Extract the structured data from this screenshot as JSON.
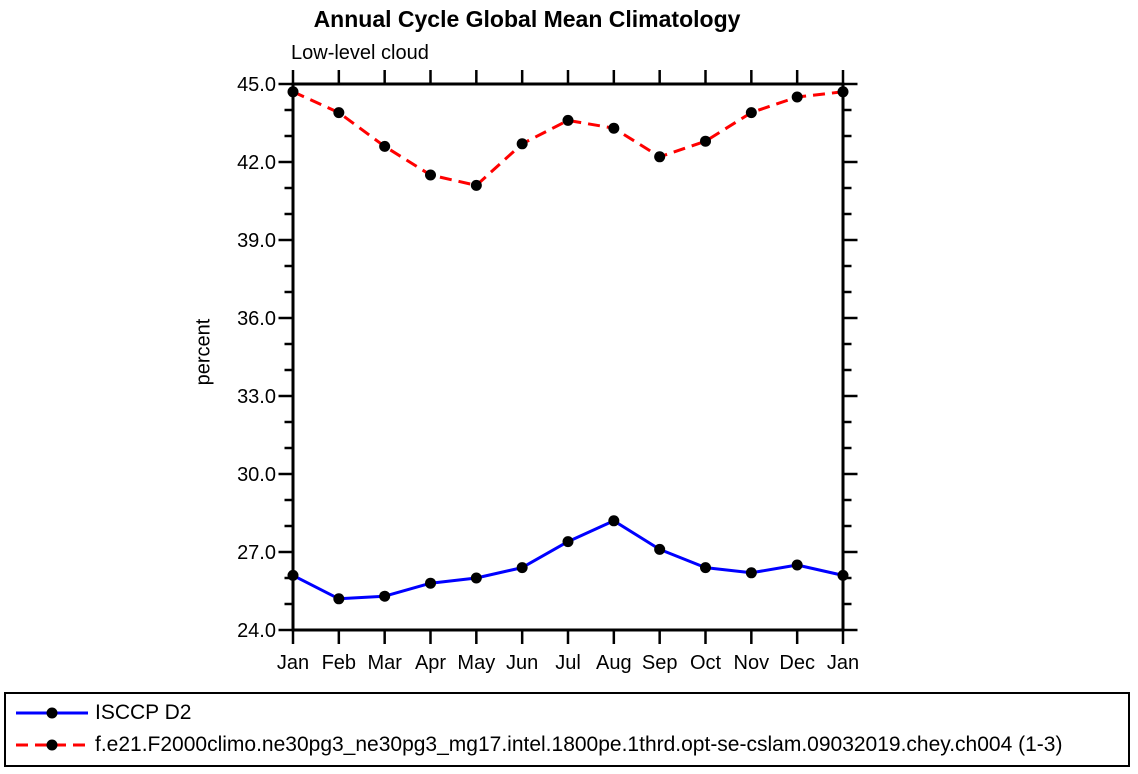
{
  "chart_data": {
    "type": "line",
    "title": "Annual Cycle Global Mean Climatology",
    "subtitle": "Low-level cloud",
    "xlabel": "",
    "ylabel": "percent",
    "x_categories": [
      "Jan",
      "Feb",
      "Mar",
      "Apr",
      "May",
      "Jun",
      "Jul",
      "Aug",
      "Sep",
      "Oct",
      "Nov",
      "Dec",
      "Jan"
    ],
    "ylim": [
      24.0,
      45.0
    ],
    "y_major_ticks": [
      24.0,
      27.0,
      30.0,
      33.0,
      36.0,
      39.0,
      42.0,
      45.0
    ],
    "y_minor_tick_step": 1.0,
    "y_tick_label_format": "one-decimal",
    "grid": false,
    "legend_position": "bottom-box",
    "marker": {
      "shape": "circle",
      "color": "#000000"
    },
    "axis_color": "#000000",
    "series": [
      {
        "name": "ISCCP D2",
        "color": "#0000ff",
        "line_style": "solid",
        "values": [
          26.1,
          25.2,
          25.3,
          25.8,
          26.0,
          26.4,
          27.4,
          28.2,
          27.1,
          26.4,
          26.2,
          26.5,
          26.1
        ]
      },
      {
        "name": "f.e21.F2000climo.ne30pg3_ne30pg3_mg17.intel.1800pe.1thrd.opt-se-cslam.09032019.chey.ch004 (1-3)",
        "color": "#ff0000",
        "line_style": "dashed",
        "values": [
          44.7,
          43.9,
          42.6,
          41.5,
          41.1,
          42.7,
          43.6,
          43.3,
          42.2,
          42.8,
          43.9,
          44.5,
          44.7
        ]
      }
    ]
  }
}
